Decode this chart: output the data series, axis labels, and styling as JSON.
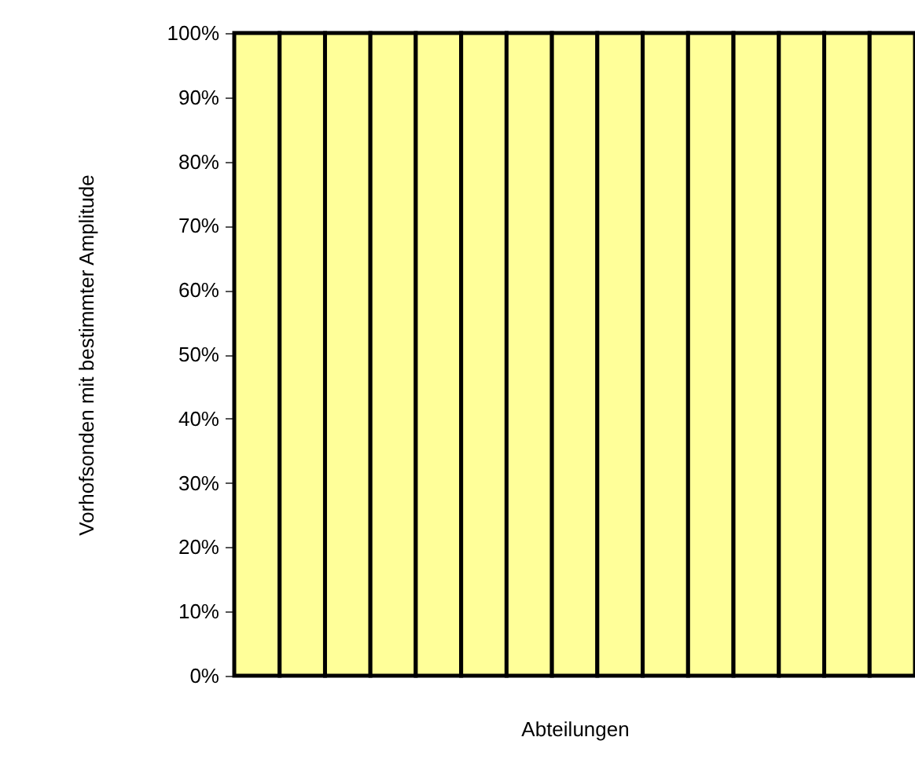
{
  "chart_data": {
    "type": "bar",
    "xlabel": "Abteilungen",
    "ylabel": "Vorhofsonden mit bestimmter Amplitude",
    "categories": [
      null,
      null,
      null,
      null,
      null,
      null,
      null,
      null,
      null,
      null,
      null,
      null,
      null,
      null,
      null
    ],
    "values": [
      100,
      100,
      100,
      100,
      100,
      100,
      100,
      100,
      100,
      100,
      100,
      100,
      100,
      100,
      100
    ],
    "color": "#ffff99",
    "ylim": [
      0,
      100
    ],
    "yticks": [
      {
        "value": 0,
        "label": "0%"
      },
      {
        "value": 10,
        "label": "10%"
      },
      {
        "value": 20,
        "label": "20%"
      },
      {
        "value": 30,
        "label": "30%"
      },
      {
        "value": 40,
        "label": "40%"
      },
      {
        "value": 50,
        "label": "50%"
      },
      {
        "value": 60,
        "label": "60%"
      },
      {
        "value": 70,
        "label": "70%"
      },
      {
        "value": 80,
        "label": "80%"
      },
      {
        "value": 90,
        "label": "90%"
      },
      {
        "value": 100,
        "label": "100%"
      }
    ],
    "tick_labels": "y"
  }
}
